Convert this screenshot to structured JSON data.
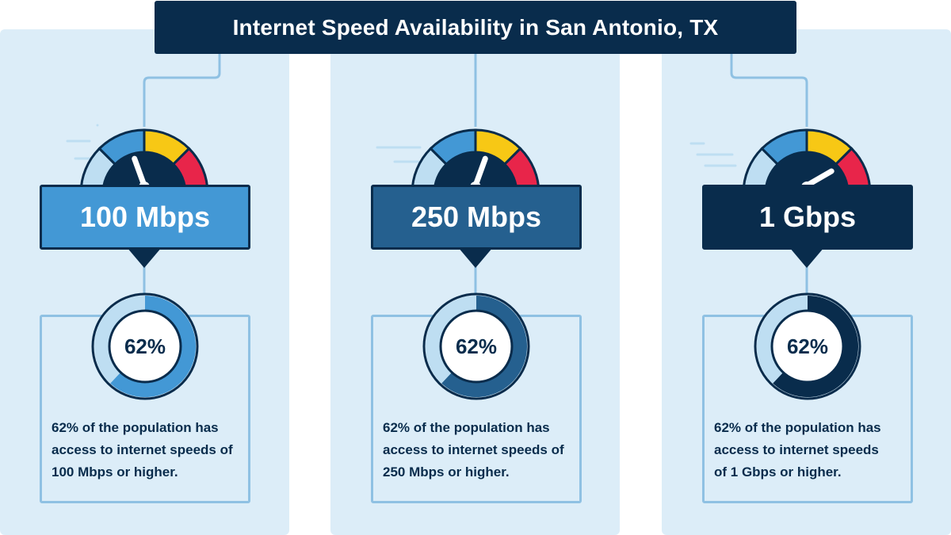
{
  "title": "Internet Speed Availability in San Antonio, TX",
  "colors": {
    "navy": "#092c4c",
    "panel_bg": "#dcedf8",
    "light_blue": "#bedef2",
    "mid_blue": "#4398d5",
    "steel_blue": "#25608f",
    "yellow": "#f7c815",
    "red": "#e8254a"
  },
  "chart_data": {
    "type": "donut",
    "categories": [
      "100 Mbps",
      "250 Mbps",
      "1 Gbps"
    ],
    "values": [
      62,
      62,
      62
    ],
    "unit": "%",
    "cards": [
      {
        "speed_label": "100 Mbps",
        "percent": 62,
        "percent_label": "62%",
        "color": "#4398d5",
        "description_lines": [
          "62% of the population has",
          "access to internet speeds of",
          "100 Mbps or higher."
        ]
      },
      {
        "speed_label": "250 Mbps",
        "percent": 62,
        "percent_label": "62%",
        "color": "#25608f",
        "description_lines": [
          "62% of the population has",
          "access to internet speeds of",
          "250 Mbps or higher."
        ]
      },
      {
        "speed_label": "1 Gbps",
        "percent": 62,
        "percent_label": "62%",
        "color": "#092c4c",
        "description_lines": [
          "62% of the population has",
          "access to internet speeds",
          "of 1 Gbps or higher."
        ]
      }
    ]
  }
}
